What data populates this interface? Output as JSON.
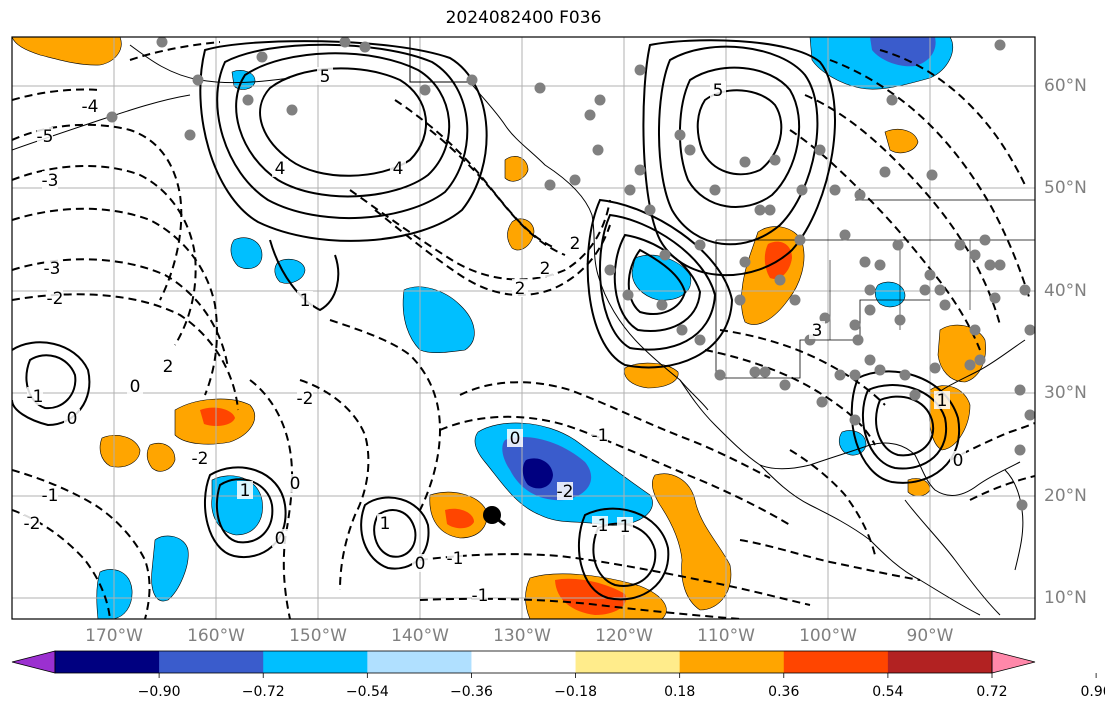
{
  "title": "2024082400 F036",
  "lon_labels": [
    "170°W",
    "160°W",
    "150°W",
    "140°W",
    "130°W",
    "120°W",
    "110°W",
    "100°W",
    "90°W"
  ],
  "lat_labels": [
    "60°N",
    "50°N",
    "40°N",
    "30°N",
    "20°N",
    "10°N"
  ],
  "colorbar": {
    "colors": [
      "#9b30d0",
      "#000080",
      "#3a5ccc",
      "#00bfff",
      "#b0e0ff",
      "#ffffff",
      "#ffec8b",
      "#ffa500",
      "#ff4500",
      "#b22222",
      "#ff88aa"
    ],
    "tick_labels": [
      "−0.90",
      "−0.72",
      "−0.54",
      "−0.36",
      "−0.18",
      "0.18",
      "0.36",
      "0.54",
      "0.72",
      "0.90"
    ]
  },
  "contour_labels": [
    "-5",
    "-4",
    "-3",
    "-3",
    "-2",
    "-2",
    "-1",
    "-1",
    "0",
    "0",
    "0",
    "0",
    "1",
    "1",
    "2",
    "-2",
    "4",
    "5",
    "4",
    "2",
    "2",
    "2",
    "0",
    "-1",
    "-2",
    "1",
    "-1",
    "-1",
    "0",
    "3",
    "1",
    "0",
    "-2",
    "5",
    "1",
    "-1"
  ],
  "colors": {
    "grid": "#b0b0b0",
    "coast": "#000000",
    "contour": "#000000",
    "station": "#808080"
  }
}
